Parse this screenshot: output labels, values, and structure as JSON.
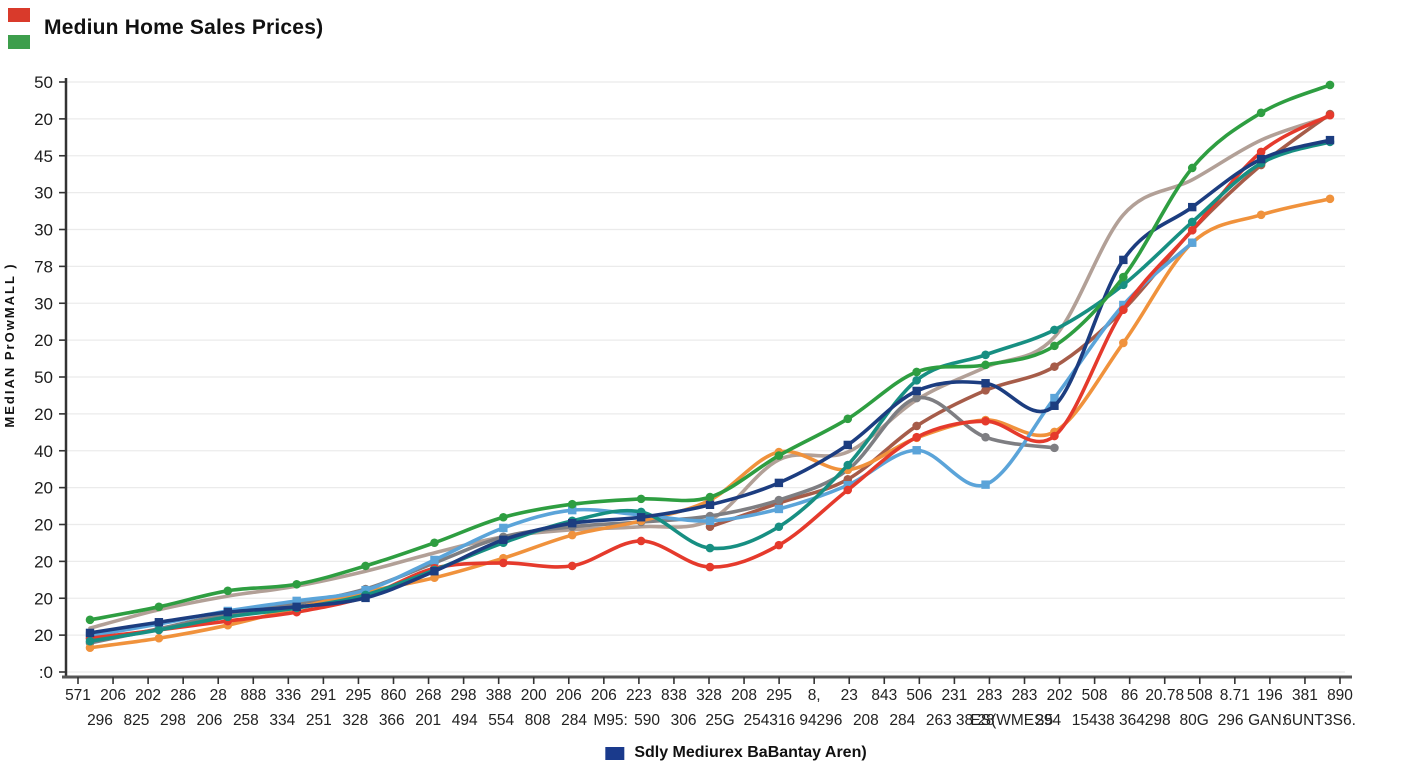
{
  "title": "Mediun Home Sales Prices)",
  "top_legend": {
    "swatch_colors": [
      "#d93a2b",
      "#3d9e4c"
    ]
  },
  "bottom_legend": {
    "label": "Sdly Mediurex BaBantay Aren)",
    "color": "#1a3a8c"
  },
  "y_axis": {
    "title": "MEdIAN PrOwMALL )",
    "tick_labels": [
      "50",
      "20",
      "45",
      "30",
      "30",
      "78",
      "30",
      "20",
      "50",
      "20",
      "40",
      "20",
      "20",
      "20",
      "20",
      "20",
      ":0"
    ]
  },
  "x_axis": {
    "tick_labels_row1": [
      "571",
      "206",
      "202",
      "286",
      "28",
      "888",
      "336",
      "291",
      "295",
      "860",
      "268",
      "298",
      "388",
      "200",
      "206",
      "206",
      "223",
      "838",
      "328",
      "208",
      "295",
      "8,",
      "23",
      "843",
      "506",
      "231",
      "283",
      "283",
      "202",
      "508",
      "86",
      "20.78",
      "508",
      "8.71",
      "196",
      "381",
      "890"
    ],
    "tick_labels_row2": [
      "296",
      "825",
      "298",
      "206",
      "258",
      "334",
      "251",
      "328",
      "366",
      "201",
      "494",
      "554",
      "808",
      "284",
      "M95:",
      "590",
      "306",
      "25G",
      "254",
      "316 94",
      "296",
      "208",
      "284",
      "263",
      "38 28",
      "ES(WMES5",
      "294",
      "154",
      "38 364",
      "298",
      "80G",
      "296",
      "GAN:",
      "6UNT",
      "3S6."
    ]
  },
  "chart_data": {
    "type": "line",
    "title": "Mediun Home Sales Prices)",
    "xlabel": "",
    "ylabel": "MEdIAN PrOwMALL )",
    "ylim": [
      0,
      100
    ],
    "values_unit": "estimated percent of plot height (axis labels are garbled)",
    "grid": true,
    "legend_position": "bottom",
    "y_tick_labels_top_to_bottom": [
      "50",
      "20",
      "45",
      "30",
      "30",
      "78",
      "30",
      "20",
      "50",
      "20",
      "40",
      "20",
      "20",
      "20",
      "20",
      "20",
      ":0"
    ],
    "x_tick_labels_row1": [
      "571",
      "206",
      "202",
      "286",
      "28",
      "888",
      "336",
      "291",
      "295",
      "860",
      "268",
      "298",
      "388",
      "200",
      "206",
      "206",
      "223",
      "838",
      "328",
      "208",
      "295",
      "8,",
      "23",
      "843",
      "506",
      "231",
      "283",
      "283",
      "202",
      "508",
      "86",
      "20.78",
      "508",
      "8.71",
      "196",
      "381",
      "890"
    ],
    "x_tick_labels_row2": [
      "296",
      "825",
      "298",
      "206",
      "258",
      "334",
      "251",
      "328",
      "366",
      "201",
      "494",
      "554",
      "808",
      "284",
      "M95:",
      "590",
      "306",
      "25G",
      "254",
      "316 94",
      "296",
      "208",
      "284",
      "263",
      "38 28",
      "ES(WMES5",
      "294",
      "154",
      "38 364",
      "298",
      "80G",
      "296",
      "GAN:",
      "6UNT",
      "3S6."
    ],
    "series": [
      {
        "name": "tan-line",
        "color": "#b2a097",
        "marker": "none",
        "values": [
          7.9,
          11,
          13.3,
          15,
          17.5,
          20.6,
          23.3,
          24.5,
          25,
          26.1,
          36.3,
          37.6,
          46.4,
          51.9,
          57,
          77.6,
          83.5,
          90.2,
          94.2
        ]
      },
      {
        "name": "sienna-line",
        "color": "#a65c49",
        "marker": "circle",
        "values": [
          null,
          null,
          null,
          null,
          null,
          null,
          null,
          null,
          null,
          25,
          29,
          33,
          42,
          48,
          52,
          61.6,
          75,
          86,
          94.6
        ]
      },
      {
        "name": "gray-line",
        "color": "#7e7e82",
        "marker": "circle",
        "values": [
          5.4,
          7.8,
          10.3,
          12,
          14.5,
          18.9,
          23.3,
          25,
          25.8,
          26.8,
          29.5,
          34.6,
          46.7,
          40.1,
          38.3,
          null,
          null,
          null,
          null
        ]
      },
      {
        "name": "orange-line",
        "color": "#f0923c",
        "marker": "circle",
        "values": [
          4.6,
          6.2,
          8.4,
          11.3,
          14,
          16.4,
          19.7,
          23.6,
          26,
          29.5,
          37.6,
          34.6,
          40,
          43,
          41,
          56,
          72.9,
          77.6,
          80.3
        ]
      },
      {
        "name": "lightblue-line",
        "color": "#5ba4d9",
        "marker": "square",
        "values": [
          6.6,
          8.6,
          10.8,
          12.5,
          14.3,
          19.4,
          24.8,
          27.8,
          27,
          26,
          28,
          32,
          37.9,
          32.1,
          46.7,
          62.4,
          72.9,
          null,
          null
        ]
      },
      {
        "name": "red-line",
        "color": "#e53a2c",
        "marker": "circle",
        "values": [
          6.2,
          7.6,
          9.1,
          10.6,
          13.2,
          18,
          18.9,
          18.4,
          22.6,
          18.2,
          21.9,
          31.2,
          40.1,
          42.8,
          40.3,
          61.6,
          75,
          88.2,
          94.4
        ]
      },
      {
        "name": "teal-line",
        "color": "#178f82",
        "marker": "circle",
        "values": [
          5.7,
          7.6,
          9.8,
          11.3,
          13.5,
          17.7,
          22.3,
          26,
          27.5,
          21.4,
          25,
          35.4,
          49.7,
          54,
          58.2,
          65.8,
          76.4,
          86.3,
          89.9
        ]
      },
      {
        "name": "Sdly Mediurex BaBantay Aren)",
        "color": "#1c3d80",
        "marker": "square",
        "values": [
          7.1,
          8.9,
          10.6,
          11.5,
          13,
          17.5,
          22.8,
          25.6,
          26.6,
          28.7,
          32.4,
          38.8,
          47.9,
          49.2,
          45.4,
          70,
          78.9,
          87,
          90.2
        ]
      },
      {
        "name": "green-line",
        "color": "#2e9e41",
        "marker": "circle",
        "values": [
          9.3,
          11.5,
          14.2,
          15.3,
          18.4,
          22.3,
          26.6,
          28.8,
          29.7,
          30,
          37,
          43.2,
          51.1,
          52.3,
          55.5,
          67.1,
          85.5,
          94.8,
          99.5
        ]
      }
    ]
  }
}
